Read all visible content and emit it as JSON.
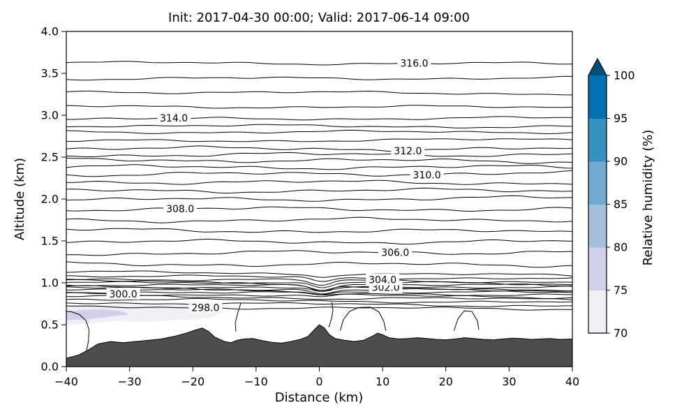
{
  "chart_data": {
    "type": "contour",
    "title": "Init: 2017-04-30 00:00; Valid: 2017-06-14 09:00",
    "xlabel": "Distance (km)",
    "ylabel": "Altitude (km)",
    "xlim": [
      -40,
      40
    ],
    "ylim": [
      0,
      4
    ],
    "x_tick_values": [
      -40,
      -30,
      -20,
      -10,
      0,
      10,
      20,
      30,
      40
    ],
    "x_tick_labels": [
      "−40",
      "−30",
      "−20",
      "−10",
      "0",
      "10",
      "20",
      "30",
      "40"
    ],
    "y_tick_values": [
      0,
      0.5,
      1,
      1.5,
      2,
      2.5,
      3,
      3.5,
      4
    ],
    "y_tick_labels": [
      "0.0",
      "0.5",
      "1.0",
      "1.5",
      "2.0",
      "2.5",
      "3.0",
      "3.5",
      "4.0"
    ],
    "contours": {
      "interval": 0.5,
      "line_color": "#000000",
      "levels": [
        [
          298.0,
          0.7
        ],
        [
          298.5,
          0.745
        ],
        [
          299.0,
          0.785
        ],
        [
          299.5,
          0.82
        ],
        [
          300.0,
          0.85
        ],
        [
          300.5,
          0.875
        ],
        [
          301.0,
          0.9
        ],
        [
          301.5,
          0.92
        ],
        [
          302.0,
          0.94
        ],
        [
          302.5,
          0.962
        ],
        [
          303.0,
          0.984
        ],
        [
          303.5,
          1.006
        ],
        [
          304.0,
          1.03
        ],
        [
          304.5,
          1.065
        ],
        [
          305.0,
          1.11
        ],
        [
          305.5,
          1.22
        ],
        [
          306.0,
          1.36
        ],
        [
          306.5,
          1.49
        ],
        [
          307.0,
          1.62
        ],
        [
          307.5,
          1.75
        ],
        [
          308.0,
          1.88
        ],
        [
          308.5,
          2.0
        ],
        [
          309.0,
          2.1
        ],
        [
          309.5,
          2.2
        ],
        [
          310.0,
          2.3
        ],
        [
          310.5,
          2.38
        ],
        [
          311.0,
          2.46
        ],
        [
          311.5,
          2.53
        ],
        [
          312.0,
          2.6
        ],
        [
          312.5,
          2.7
        ],
        [
          313.0,
          2.8
        ],
        [
          313.5,
          2.87
        ],
        [
          314.0,
          2.96
        ],
        [
          314.5,
          3.1
        ],
        [
          315.0,
          3.27
        ],
        [
          315.5,
          3.44
        ],
        [
          316.0,
          3.62
        ]
      ],
      "labeled": [
        {
          "text": "298.0",
          "level": 298.0,
          "x_km": -18
        },
        {
          "text": "300.0",
          "level": 300.0,
          "x_km": -31
        },
        {
          "text": "302.0",
          "level": 302.0,
          "x_km": 10.5
        },
        {
          "text": "304.0",
          "level": 304.0,
          "x_km": 10
        },
        {
          "text": "306.0",
          "level": 306.0,
          "x_km": 12
        },
        {
          "text": "308.0",
          "level": 308.0,
          "x_km": -22
        },
        {
          "text": "310.0",
          "level": 310.0,
          "x_km": 17
        },
        {
          "text": "312.0",
          "level": 312.0,
          "x_km": 14
        },
        {
          "text": "314.0",
          "level": 314.0,
          "x_km": -23
        },
        {
          "text": "316.0",
          "level": 316.0,
          "x_km": 15
        }
      ]
    },
    "surface_contour_arcs": [
      [
        [
          -36.9,
          0.16
        ],
        [
          -36.5,
          0.3
        ],
        [
          -36.4,
          0.44
        ],
        [
          -36.9,
          0.55
        ],
        [
          -37.9,
          0.62
        ],
        [
          -39.2,
          0.655
        ],
        [
          -40,
          0.66
        ]
      ],
      [
        [
          -12.4,
          0.76
        ],
        [
          -12.9,
          0.64
        ],
        [
          -13.3,
          0.52
        ],
        [
          -13.2,
          0.42
        ]
      ],
      [
        [
          1.5,
          0.47
        ],
        [
          1.95,
          0.58
        ],
        [
          2.15,
          0.68
        ],
        [
          1.95,
          0.77
        ]
      ],
      [
        [
          3.3,
          0.43
        ],
        [
          3.8,
          0.56
        ],
        [
          4.8,
          0.66
        ],
        [
          6.2,
          0.705
        ],
        [
          8.0,
          0.71
        ],
        [
          9.4,
          0.655
        ],
        [
          10.2,
          0.54
        ],
        [
          10.5,
          0.43
        ]
      ],
      [
        [
          21.3,
          0.43
        ],
        [
          21.9,
          0.57
        ],
        [
          22.9,
          0.665
        ],
        [
          24.1,
          0.66
        ],
        [
          25.0,
          0.545
        ],
        [
          25.2,
          0.44
        ]
      ]
    ],
    "terrain": {
      "fill_color": "#4d4d4d",
      "edge_color": "#000000",
      "points": [
        [
          -40,
          0.1
        ],
        [
          -38,
          0.14
        ],
        [
          -36.5,
          0.2
        ],
        [
          -35,
          0.27
        ],
        [
          -33,
          0.3
        ],
        [
          -31,
          0.285
        ],
        [
          -29,
          0.3
        ],
        [
          -27,
          0.315
        ],
        [
          -25,
          0.33
        ],
        [
          -23,
          0.36
        ],
        [
          -21,
          0.4
        ],
        [
          -19.5,
          0.44
        ],
        [
          -18.5,
          0.46
        ],
        [
          -17.5,
          0.42
        ],
        [
          -16.5,
          0.35
        ],
        [
          -15,
          0.3
        ],
        [
          -14,
          0.285
        ],
        [
          -13,
          0.315
        ],
        [
          -12,
          0.33
        ],
        [
          -10.5,
          0.335
        ],
        [
          -9,
          0.31
        ],
        [
          -7.5,
          0.29
        ],
        [
          -6,
          0.28
        ],
        [
          -4.5,
          0.3
        ],
        [
          -3,
          0.325
        ],
        [
          -1.8,
          0.36
        ],
        [
          -0.8,
          0.44
        ],
        [
          0,
          0.5
        ],
        [
          0.8,
          0.46
        ],
        [
          1.6,
          0.38
        ],
        [
          2.5,
          0.335
        ],
        [
          4,
          0.315
        ],
        [
          5.5,
          0.3
        ],
        [
          7,
          0.315
        ],
        [
          8.3,
          0.36
        ],
        [
          9.2,
          0.4
        ],
        [
          10,
          0.38
        ],
        [
          11,
          0.345
        ],
        [
          12.5,
          0.33
        ],
        [
          14,
          0.335
        ],
        [
          15.5,
          0.345
        ],
        [
          17,
          0.335
        ],
        [
          18.5,
          0.325
        ],
        [
          20,
          0.32
        ],
        [
          21.5,
          0.33
        ],
        [
          23,
          0.345
        ],
        [
          24.5,
          0.335
        ],
        [
          26,
          0.325
        ],
        [
          27.5,
          0.32
        ],
        [
          29,
          0.33
        ],
        [
          30.5,
          0.34
        ],
        [
          32,
          0.335
        ],
        [
          33.5,
          0.325
        ],
        [
          35,
          0.33
        ],
        [
          36.5,
          0.335
        ],
        [
          38,
          0.325
        ],
        [
          40,
          0.33
        ]
      ]
    },
    "humidity_shading": {
      "patches": [
        {
          "rh_range": "70-75",
          "color": "#f1eef6",
          "points": [
            [
              -40,
              0.5
            ],
            [
              -36,
              0.515
            ],
            [
              -32,
              0.545
            ],
            [
              -28,
              0.53
            ],
            [
              -24,
              0.55
            ],
            [
              -20,
              0.565
            ],
            [
              -17,
              0.585
            ],
            [
              -15.8,
              0.63
            ],
            [
              -16.4,
              0.69
            ],
            [
              -18.5,
              0.725
            ],
            [
              -22,
              0.74
            ],
            [
              -26,
              0.73
            ],
            [
              -30,
              0.75
            ],
            [
              -34,
              0.735
            ],
            [
              -37,
              0.745
            ],
            [
              -40,
              0.725
            ]
          ]
        },
        {
          "rh_range": "75-80",
          "color": "#d0d1e6",
          "points": [
            [
              -40,
              0.555
            ],
            [
              -36.5,
              0.565
            ],
            [
              -33,
              0.6
            ],
            [
              -30,
              0.625
            ],
            [
              -31.5,
              0.665
            ],
            [
              -34.5,
              0.685
            ],
            [
              -37.5,
              0.675
            ],
            [
              -40,
              0.66
            ]
          ]
        }
      ]
    },
    "colorbar": {
      "label": "Relative humidity (%)",
      "bounds": [
        70,
        75,
        80,
        85,
        90,
        95,
        100
      ],
      "tick_labels": [
        "70",
        "75",
        "80",
        "85",
        "90",
        "95",
        "100"
      ],
      "colors": [
        "#f1eef6",
        "#d0d1e6",
        "#a6bddb",
        "#74a9cf",
        "#3690c0",
        "#0570b0"
      ],
      "extend_max_color": "#034e7b",
      "extend": "max"
    }
  }
}
